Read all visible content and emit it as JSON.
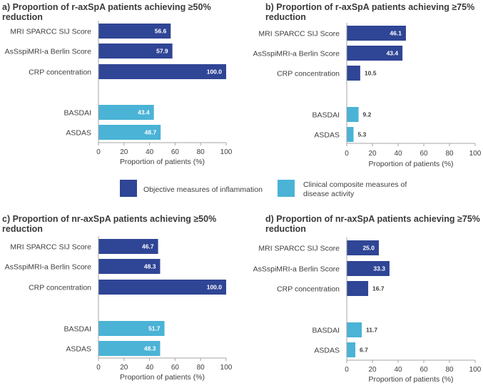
{
  "colors": {
    "objective": "#2f4595",
    "clinical": "#4ab3d6",
    "axis": "#a6a6a6",
    "text": "#404040"
  },
  "legend": {
    "objective_label": "Objective measures of inflammation",
    "clinical_label_line1": "Clinical composite measures of",
    "clinical_label_line2": "disease activity"
  },
  "chart_data": [
    {
      "type": "bar",
      "orientation": "horizontal",
      "title_line1": "a) Proportion of r-axSpA patients achieving ≥50%",
      "title_line2": "reduction",
      "categories": [
        "MRI SPARCC SIJ Score",
        "AsSspiMRI-a Berlin Score",
        "CRP concentration",
        "BASDAI",
        "ASDAS"
      ],
      "groups": [
        "objective",
        "objective",
        "objective",
        "clinical",
        "clinical"
      ],
      "values": [
        56.6,
        57.9,
        100.0,
        43.4,
        48.7
      ],
      "value_labels": [
        "56.6",
        "57.9",
        "100.0",
        "43.4",
        "48.7"
      ],
      "xlabel": "Proportion of patients (%)",
      "xlim": [
        0,
        100
      ],
      "xticks": [
        "0",
        "20",
        "40",
        "60",
        "80",
        "100"
      ]
    },
    {
      "type": "bar",
      "orientation": "horizontal",
      "title_line1": "b) Proportion of r-axSpA patients achieving ≥75%",
      "title_line2": "reduction",
      "categories": [
        "MRI SPARCC SIJ Score",
        "AsSspiMRI-a Berlin Score",
        "CRP concentration",
        "BASDAI",
        "ASDAS"
      ],
      "groups": [
        "objective",
        "objective",
        "objective",
        "clinical",
        "clinical"
      ],
      "values": [
        46.1,
        43.4,
        10.5,
        9.2,
        5.3
      ],
      "value_labels": [
        "46.1",
        "43.4",
        "10.5",
        "9.2",
        "5.3"
      ],
      "xlabel": "Proportion of patients (%)",
      "xlim": [
        0,
        100
      ],
      "xticks": [
        "0",
        "20",
        "40",
        "60",
        "80",
        "100"
      ]
    },
    {
      "type": "bar",
      "orientation": "horizontal",
      "title_line1": "c) Proportion of nr-axSpA patients achieving ≥50%",
      "title_line2": "reduction",
      "categories": [
        "MRI SPARCC SIJ Score",
        "AsSspiMRI-a Berlin Score",
        "CRP concentration",
        "BASDAI",
        "ASDAS"
      ],
      "groups": [
        "objective",
        "objective",
        "objective",
        "clinical",
        "clinical"
      ],
      "values": [
        46.7,
        48.3,
        100.0,
        51.7,
        48.3
      ],
      "value_labels": [
        "46.7",
        "48.3",
        "100.0",
        "51.7",
        "48.3"
      ],
      "xlabel": "Proportion of patients (%)",
      "xlim": [
        0,
        100
      ],
      "xticks": [
        "0",
        "20",
        "40",
        "60",
        "80",
        "100"
      ]
    },
    {
      "type": "bar",
      "orientation": "horizontal",
      "title_line1": "d) Proportion of nr-axSpA patients achieving ≥75%",
      "title_line2": "reduction",
      "categories": [
        "MRI SPARCC SIJ Score",
        "AsSspiMRI-a Berlin Score",
        "CRP concentration",
        "BASDAI",
        "ASDAS"
      ],
      "groups": [
        "objective",
        "objective",
        "objective",
        "clinical",
        "clinical"
      ],
      "values": [
        25.0,
        33.3,
        16.7,
        11.7,
        6.7
      ],
      "value_labels": [
        "25.0",
        "33.3",
        "16.7",
        "11.7",
        "6.7"
      ],
      "xlabel": "Proportion of patients (%)",
      "xlim": [
        0,
        100
      ],
      "xticks": [
        "0",
        "20",
        "40",
        "60",
        "80",
        "100"
      ]
    }
  ]
}
